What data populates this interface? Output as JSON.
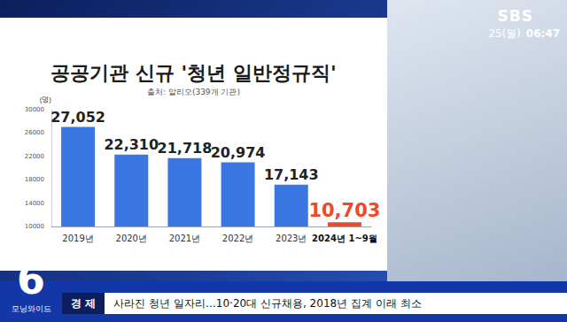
{
  "chart_data": {
    "type": "bar",
    "title": "공공기관 신규 '청년 일반정규직'",
    "subtitle": "출처: 알리오(339개 기관)",
    "y_label": "(명)",
    "categories": [
      "2019년",
      "2020년",
      "2021년",
      "2022년",
      "2023년",
      "2024년 1~9월"
    ],
    "values": [
      27052,
      22310,
      21718,
      20974,
      17143,
      10703
    ],
    "value_labels": [
      "27,052",
      "22,310",
      "21,718",
      "20,974",
      "17,143",
      "10,703"
    ],
    "colors": [
      "#3b77e3",
      "#3b77e3",
      "#3b77e3",
      "#3b77e3",
      "#3b77e3",
      "#ec4a2a"
    ],
    "ylim": [
      10000,
      30000
    ],
    "yticks": [
      10000,
      14000,
      18000,
      22000,
      26000,
      30000
    ],
    "grid": false,
    "data_labels": true
  },
  "broadcast": {
    "logo": "SBS",
    "date": "25(월)",
    "time": "06:47",
    "program_number": "6",
    "program_name": "모닝와이드",
    "ticker_section": "경 제",
    "ticker_text": "사라진 청년 일자리…10·20대 신규채용, 2018년 집계 이래 최소"
  }
}
